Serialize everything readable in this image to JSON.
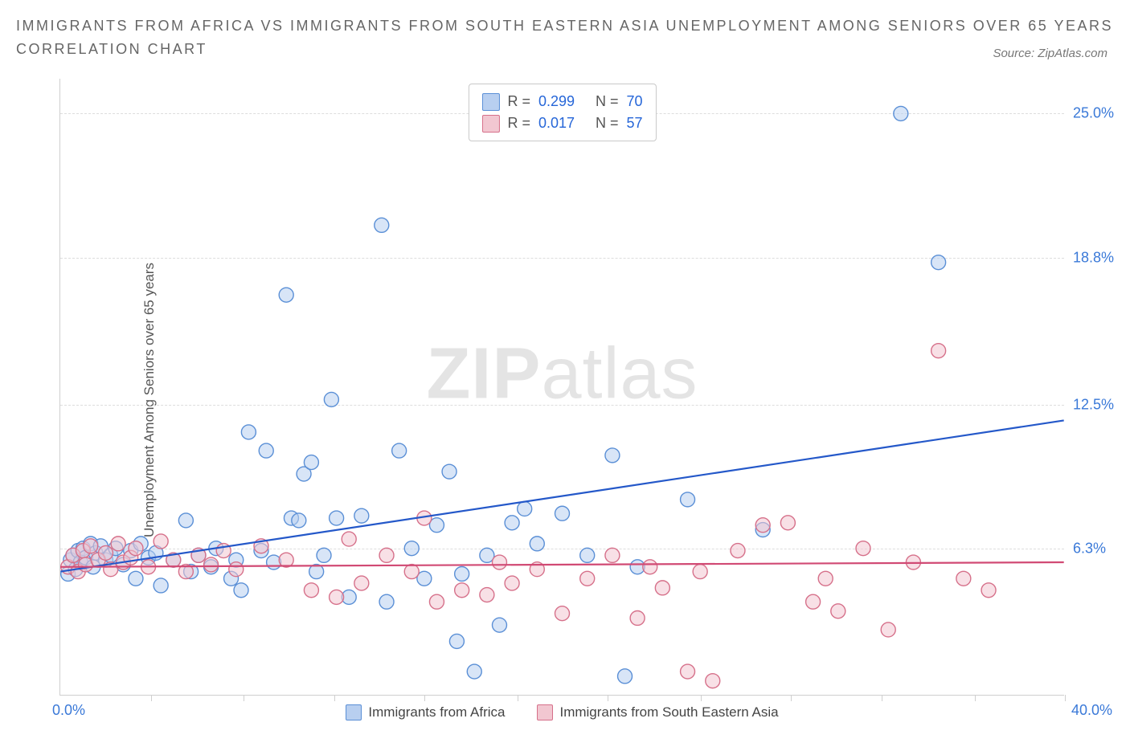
{
  "title_line1": "IMMIGRANTS FROM AFRICA VS IMMIGRANTS FROM SOUTH EASTERN ASIA UNEMPLOYMENT AMONG SENIORS OVER 65 YEARS",
  "title_line2": "CORRELATION CHART",
  "source_label": "Source: ZipAtlas.com",
  "ylabel": "Unemployment Among Seniors over 65 years",
  "watermark_bold": "ZIP",
  "watermark_rest": "atlas",
  "chart": {
    "type": "scatter",
    "background_color": "#ffffff",
    "grid_color": "#dddddd",
    "axis_color": "#cfcfcf",
    "text_color": "#555555",
    "value_color": "#3a79d8",
    "xlim": [
      0,
      40
    ],
    "ylim": [
      0,
      26.5
    ],
    "x_ticks": [
      3.6,
      7.3,
      10.9,
      14.5,
      18.2,
      21.8,
      25.5,
      29.1,
      32.7,
      36.4,
      40
    ],
    "y_ticks": [
      6.3,
      12.5,
      18.8,
      25.0
    ],
    "y_tick_labels": [
      "6.3%",
      "12.5%",
      "18.8%",
      "25.0%"
    ],
    "x_min_label": "0.0%",
    "x_max_label": "40.0%",
    "marker_radius": 9,
    "marker_stroke_width": 1.4,
    "line_width": 2.2
  },
  "series": [
    {
      "name": "Immigrants from Africa",
      "fill": "#b8cff0",
      "stroke": "#5a8fd6",
      "line_color": "#2458c9",
      "fill_opacity": 0.55,
      "R": "0.299",
      "N": "70",
      "trend": {
        "x1": 0,
        "y1": 5.3,
        "x2": 40,
        "y2": 11.8
      },
      "points": [
        [
          0.3,
          5.2
        ],
        [
          0.4,
          5.8
        ],
        [
          0.5,
          6.0
        ],
        [
          0.6,
          5.4
        ],
        [
          0.7,
          6.2
        ],
        [
          0.8,
          5.7
        ],
        [
          0.9,
          6.3
        ],
        [
          1.0,
          5.9
        ],
        [
          1.2,
          6.5
        ],
        [
          1.3,
          5.5
        ],
        [
          1.4,
          6.1
        ],
        [
          1.6,
          6.4
        ],
        [
          1.8,
          5.8
        ],
        [
          2.0,
          6.0
        ],
        [
          2.2,
          6.3
        ],
        [
          2.5,
          5.6
        ],
        [
          2.8,
          6.2
        ],
        [
          3.0,
          5.0
        ],
        [
          3.2,
          6.5
        ],
        [
          3.5,
          5.9
        ],
        [
          3.8,
          6.1
        ],
        [
          4.0,
          4.7
        ],
        [
          4.5,
          5.8
        ],
        [
          5.0,
          7.5
        ],
        [
          5.2,
          5.3
        ],
        [
          5.5,
          6.0
        ],
        [
          6.0,
          5.5
        ],
        [
          6.2,
          6.3
        ],
        [
          6.8,
          5.0
        ],
        [
          7.0,
          5.8
        ],
        [
          7.2,
          4.5
        ],
        [
          7.5,
          11.3
        ],
        [
          8.0,
          6.2
        ],
        [
          8.2,
          10.5
        ],
        [
          8.5,
          5.7
        ],
        [
          9.0,
          17.2
        ],
        [
          9.2,
          7.6
        ],
        [
          9.5,
          7.5
        ],
        [
          9.7,
          9.5
        ],
        [
          10.0,
          10.0
        ],
        [
          10.2,
          5.3
        ],
        [
          10.5,
          6.0
        ],
        [
          10.8,
          12.7
        ],
        [
          11.0,
          7.6
        ],
        [
          11.5,
          4.2
        ],
        [
          12.0,
          7.7
        ],
        [
          12.8,
          20.2
        ],
        [
          13.0,
          4.0
        ],
        [
          13.5,
          10.5
        ],
        [
          14.0,
          6.3
        ],
        [
          14.5,
          5.0
        ],
        [
          15.0,
          7.3
        ],
        [
          15.5,
          9.6
        ],
        [
          15.8,
          2.3
        ],
        [
          16.0,
          5.2
        ],
        [
          16.5,
          1.0
        ],
        [
          17.0,
          6.0
        ],
        [
          17.5,
          3.0
        ],
        [
          18.0,
          7.4
        ],
        [
          18.5,
          8.0
        ],
        [
          19.0,
          6.5
        ],
        [
          20.0,
          7.8
        ],
        [
          21.0,
          6.0
        ],
        [
          22.0,
          10.3
        ],
        [
          22.5,
          0.8
        ],
        [
          23.0,
          5.5
        ],
        [
          25.0,
          8.4
        ],
        [
          28.0,
          7.1
        ],
        [
          33.5,
          25.0
        ],
        [
          35.0,
          18.6
        ]
      ]
    },
    {
      "name": "Immigrants from South Eastern Asia",
      "fill": "#f2c7d1",
      "stroke": "#d6708a",
      "line_color": "#d14a74",
      "fill_opacity": 0.55,
      "R": "0.017",
      "N": "57",
      "trend": {
        "x1": 0,
        "y1": 5.5,
        "x2": 40,
        "y2": 5.7
      },
      "points": [
        [
          0.3,
          5.5
        ],
        [
          0.5,
          6.0
        ],
        [
          0.7,
          5.3
        ],
        [
          0.9,
          6.2
        ],
        [
          1.0,
          5.6
        ],
        [
          1.2,
          6.4
        ],
        [
          1.5,
          5.8
        ],
        [
          1.8,
          6.1
        ],
        [
          2.0,
          5.4
        ],
        [
          2.3,
          6.5
        ],
        [
          2.5,
          5.7
        ],
        [
          2.8,
          5.9
        ],
        [
          3.0,
          6.3
        ],
        [
          3.5,
          5.5
        ],
        [
          4.0,
          6.6
        ],
        [
          4.5,
          5.8
        ],
        [
          5.0,
          5.3
        ],
        [
          5.5,
          6.0
        ],
        [
          6.0,
          5.6
        ],
        [
          6.5,
          6.2
        ],
        [
          7.0,
          5.4
        ],
        [
          8.0,
          6.4
        ],
        [
          9.0,
          5.8
        ],
        [
          10.0,
          4.5
        ],
        [
          11.0,
          4.2
        ],
        [
          11.5,
          6.7
        ],
        [
          12.0,
          4.8
        ],
        [
          13.0,
          6.0
        ],
        [
          14.0,
          5.3
        ],
        [
          14.5,
          7.6
        ],
        [
          15.0,
          4.0
        ],
        [
          16.0,
          4.5
        ],
        [
          17.0,
          4.3
        ],
        [
          17.5,
          5.7
        ],
        [
          18.0,
          4.8
        ],
        [
          19.0,
          5.4
        ],
        [
          20.0,
          3.5
        ],
        [
          21.0,
          5.0
        ],
        [
          22.0,
          6.0
        ],
        [
          23.0,
          3.3
        ],
        [
          23.5,
          5.5
        ],
        [
          24.0,
          4.6
        ],
        [
          25.0,
          1.0
        ],
        [
          25.5,
          5.3
        ],
        [
          26.0,
          0.6
        ],
        [
          27.0,
          6.2
        ],
        [
          28.0,
          7.3
        ],
        [
          29.0,
          7.4
        ],
        [
          30.0,
          4.0
        ],
        [
          30.5,
          5.0
        ],
        [
          31.0,
          3.6
        ],
        [
          32.0,
          6.3
        ],
        [
          33.0,
          2.8
        ],
        [
          34.0,
          5.7
        ],
        [
          35.0,
          14.8
        ],
        [
          36.0,
          5.0
        ],
        [
          37.0,
          4.5
        ]
      ]
    }
  ],
  "stat_box": {
    "R_label": "R =",
    "N_label": "N ="
  },
  "legend_labels": [
    "Immigrants from Africa",
    "Immigrants from South Eastern Asia"
  ]
}
